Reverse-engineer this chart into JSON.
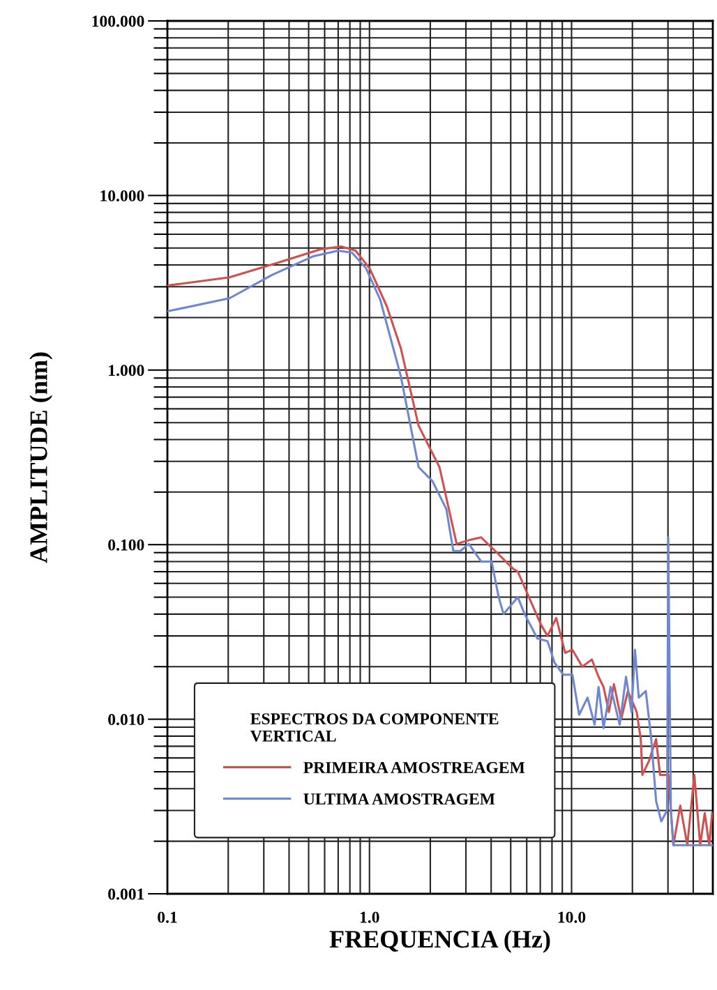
{
  "chart_data": {
    "type": "line",
    "xlabel": "FREQUENCIA (Hz)",
    "ylabel": "AMPLITUDE (nm)",
    "legend_title": "ESPECTROS DA COMPONENTE\nVERTICAL",
    "log": "xy",
    "grid": true,
    "legend": "bottom",
    "line_style": "solid",
    "xlim": [
      0.1,
      50
    ],
    "ylim": [
      0.001,
      100
    ],
    "xticks": [
      0.1,
      {
        "value": 1,
        "label": "1.0"
      },
      {
        "value": 10,
        "label": "10.0"
      }
    ],
    "yticks": [
      {
        "value": 0.001,
        "label": "0.001"
      },
      {
        "value": 0.01,
        "label": "0.010"
      },
      {
        "value": 0.1,
        "label": "0.100"
      },
      {
        "value": 1,
        "label": "1.000"
      },
      {
        "value": 10,
        "label": "10.000"
      },
      {
        "value": 100,
        "label": "100.000"
      }
    ],
    "series": [
      {
        "name": "PRIMEIRA AMOSTREAGEM",
        "color": "#d0504f",
        "x": [
          0.1,
          0.203,
          0.355,
          0.573,
          0.727,
          0.853,
          1.0,
          1.22,
          1.43,
          1.75,
          2.22,
          2.7,
          3.1,
          3.57,
          4.19,
          5.12,
          5.42,
          6.25,
          7.04,
          7.6,
          8.4,
          9.3,
          10.1,
          11.3,
          12.6,
          13.6,
          14.4,
          15.3,
          16.2,
          17.6,
          19.0,
          21.0,
          22.0,
          22.4,
          24.2,
          26.2,
          27.4,
          30.1,
          31.9,
          34.5,
          37.4,
          40.5,
          43.3,
          45.6,
          48,
          49.6
        ],
        "values": [
          3.05,
          3.4,
          4.13,
          4.92,
          5.1,
          4.83,
          3.84,
          2.31,
          1.33,
          0.48,
          0.278,
          0.101,
          0.106,
          0.11,
          0.092,
          0.073,
          0.07,
          0.048,
          0.035,
          0.03,
          0.038,
          0.024,
          0.025,
          0.02,
          0.022,
          0.0175,
          0.0153,
          0.011,
          0.0159,
          0.01,
          0.0145,
          0.011,
          0.0077,
          0.0048,
          0.0058,
          0.0077,
          0.0048,
          0.0048,
          0.0019,
          0.0032,
          0.0019,
          0.0048,
          0.0019,
          0.0029,
          0.0019,
          0.0029
        ]
      },
      {
        "name": "ULTIMA AMOSTRAGEM",
        "color": "#6f86d0",
        "x": [
          0.1,
          0.203,
          0.328,
          0.529,
          0.7,
          0.82,
          0.96,
          1.13,
          1.43,
          1.75,
          2.05,
          2.4,
          2.6,
          2.82,
          3.1,
          3.57,
          4.02,
          4.36,
          4.61,
          5.42,
          5.86,
          6.77,
          7.6,
          8.25,
          9.1,
          10.1,
          10.9,
          12.0,
          13.0,
          13.6,
          14.4,
          15.6,
          17.3,
          18.6,
          19.8,
          20.6,
          21.5,
          23.3,
          24.8,
          26.2,
          27.8,
          29.7,
          30.1,
          31,
          31.9,
          49.6
        ],
        "values": [
          2.17,
          2.58,
          3.5,
          4.49,
          4.83,
          4.7,
          3.84,
          2.53,
          0.92,
          0.278,
          0.231,
          0.16,
          0.092,
          0.092,
          0.101,
          0.08,
          0.08,
          0.05,
          0.04,
          0.05,
          0.04,
          0.029,
          0.028,
          0.021,
          0.018,
          0.018,
          0.0106,
          0.0133,
          0.0093,
          0.0153,
          0.0089,
          0.0153,
          0.0093,
          0.0175,
          0.011,
          0.025,
          0.0133,
          0.0145,
          0.0077,
          0.0034,
          0.0026,
          0.003,
          0.11,
          0.003,
          0.0019,
          0.0019
        ]
      }
    ]
  }
}
